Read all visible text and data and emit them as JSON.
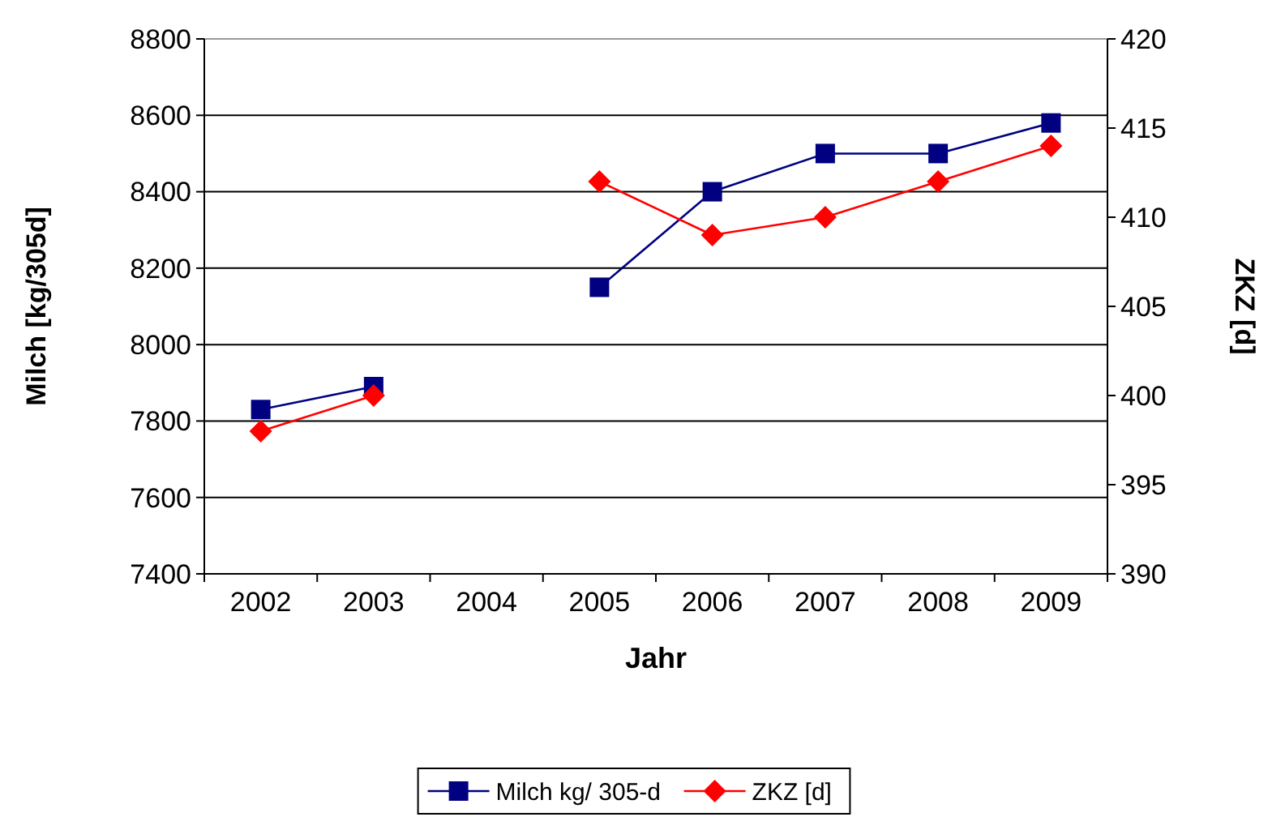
{
  "chart_data": {
    "type": "line",
    "xlabel": "Jahr",
    "ylabel": "Milch [kg/305d]",
    "y2label": "ZKZ [d]",
    "categories": [
      "2002",
      "2003",
      "2004",
      "2005",
      "2006",
      "2007",
      "2008",
      "2009"
    ],
    "series": [
      {
        "name": "Milch kg/ 305-d",
        "color": "#000080",
        "marker": "square",
        "values": [
          7830,
          7890,
          null,
          8150,
          8400,
          8500,
          8500,
          8580
        ]
      },
      {
        "name": "ZKZ [d]",
        "color": "#ff0000",
        "marker": "diamond",
        "axis": "y2",
        "values": [
          398,
          400,
          null,
          412,
          409,
          410,
          412,
          414
        ]
      }
    ],
    "ylim": [
      7400,
      8800
    ],
    "yticks": [
      7400,
      7600,
      7800,
      8000,
      8200,
      8400,
      8600,
      8800
    ],
    "y2lim": [
      390,
      420
    ],
    "y2ticks": [
      390,
      395,
      400,
      405,
      410,
      415,
      420
    ],
    "grid": "y",
    "legend": "bottom",
    "line_style": "solid"
  }
}
